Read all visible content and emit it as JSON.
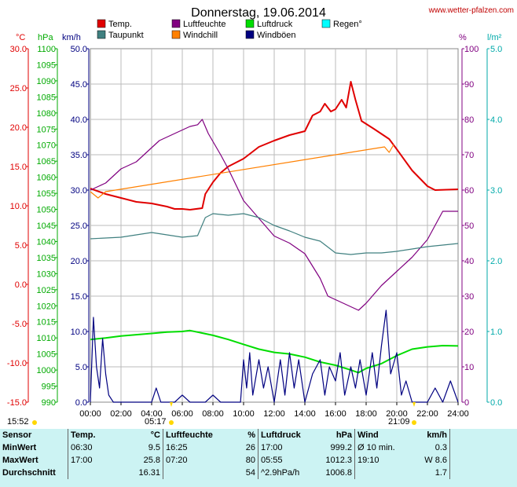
{
  "header": {
    "title": "Donnerstag, 19.06.2014",
    "url": "www.wetter-pfalzen.com"
  },
  "legend": [
    {
      "label": "Temp.",
      "color": "#e00000"
    },
    {
      "label": "Luftfeuchte",
      "color": "#800080"
    },
    {
      "label": "Luftdruck",
      "color": "#00dd00"
    },
    {
      "label": "Regen°",
      "color": "#00ffff"
    },
    {
      "label": "Taupunkt",
      "color": "#408080"
    },
    {
      "label": "Windchill",
      "color": "#ff8000"
    },
    {
      "label": "Windböen",
      "color": "#000080"
    }
  ],
  "units": {
    "temp": "°C",
    "pressure": "hPa",
    "wind": "km/h",
    "humidity": "%",
    "rain": "l/m²"
  },
  "axes": {
    "temp": [
      "30.0",
      "25.0",
      "20.0",
      "15.0",
      "10.0",
      "5.0",
      "0.0",
      "-5.0",
      "-10.0",
      "-15.0"
    ],
    "pressure": [
      "1100",
      "1095",
      "1090",
      "1085",
      "1080",
      "1075",
      "1070",
      "1065",
      "1060",
      "1055",
      "1050",
      "1045",
      "1040",
      "1035",
      "1030",
      "1025",
      "1020",
      "1015",
      "1010",
      "1005",
      "1000",
      "995",
      "990"
    ],
    "wind": [
      "50.0",
      "45.0",
      "40.0",
      "35.0",
      "30.0",
      "25.0",
      "20.0",
      "15.0",
      "10.0",
      "5.0",
      "0.0"
    ],
    "humidity": [
      "100",
      "90",
      "80",
      "70",
      "60",
      "50",
      "40",
      "30",
      "20",
      "10",
      "0"
    ],
    "rain": [
      "5.0",
      "4.0",
      "3.0",
      "2.0",
      "1.0",
      "0.0"
    ],
    "x": [
      "00:00",
      "02:00",
      "04:00",
      "06:00",
      "08:00",
      "10:00",
      "12:00",
      "14:00",
      "16:00",
      "18:00",
      "20:00",
      "22:00",
      "24:00"
    ]
  },
  "sun": {
    "sunrise": "05:17",
    "sunset": "21:09",
    "left_time": "15:52"
  },
  "chart_data": {
    "type": "line",
    "title": "Donnerstag, 19.06.2014",
    "x_unit": "hours",
    "xlim": [
      0,
      24
    ],
    "series": [
      {
        "name": "Temp.",
        "axis": "temp",
        "ylim": [
          -15,
          30
        ],
        "color": "#e00000",
        "points": [
          [
            0,
            12.2
          ],
          [
            1,
            11.5
          ],
          [
            2,
            11.0
          ],
          [
            3,
            10.5
          ],
          [
            4,
            10.3
          ],
          [
            5,
            9.9
          ],
          [
            5.5,
            9.6
          ],
          [
            6,
            9.6
          ],
          [
            6.5,
            9.5
          ],
          [
            7.3,
            9.7
          ],
          [
            7.5,
            11.5
          ],
          [
            8,
            13.0
          ],
          [
            8.5,
            14.2
          ],
          [
            9,
            15.0
          ],
          [
            10,
            16.0
          ],
          [
            11,
            17.5
          ],
          [
            12,
            18.3
          ],
          [
            13,
            19.0
          ],
          [
            14,
            19.5
          ],
          [
            14.5,
            21.5
          ],
          [
            15,
            22.0
          ],
          [
            15.3,
            23.0
          ],
          [
            15.7,
            22.0
          ],
          [
            16,
            22.3
          ],
          [
            16.4,
            23.5
          ],
          [
            16.7,
            22.5
          ],
          [
            17,
            25.8
          ],
          [
            17.3,
            23.5
          ],
          [
            17.7,
            20.8
          ],
          [
            18.5,
            19.8
          ],
          [
            19.5,
            18.5
          ],
          [
            20,
            17.2
          ],
          [
            21,
            14.5
          ],
          [
            22,
            12.5
          ],
          [
            22.5,
            12.0
          ],
          [
            24,
            12.1
          ]
        ]
      },
      {
        "name": "Windchill",
        "axis": "temp",
        "ylim": [
          -15,
          30
        ],
        "color": "#ff8000",
        "points": [
          [
            0,
            11.8
          ],
          [
            0.5,
            11.0
          ],
          [
            1,
            11.8
          ],
          [
            19.2,
            17.5
          ],
          [
            19.5,
            16.8
          ],
          [
            19.8,
            17.8
          ]
        ]
      },
      {
        "name": "Luftfeuchte",
        "axis": "humidity",
        "ylim": [
          0,
          100
        ],
        "color": "#800080",
        "points": [
          [
            0,
            60
          ],
          [
            1,
            62
          ],
          [
            2,
            66
          ],
          [
            3,
            68
          ],
          [
            4,
            72
          ],
          [
            4.5,
            74
          ],
          [
            5,
            75
          ],
          [
            6,
            77
          ],
          [
            6.5,
            78
          ],
          [
            7,
            78.5
          ],
          [
            7.3,
            80
          ],
          [
            7.7,
            76
          ],
          [
            8.5,
            70
          ],
          [
            9,
            66
          ],
          [
            10,
            57
          ],
          [
            11,
            52
          ],
          [
            12,
            47
          ],
          [
            13,
            45
          ],
          [
            14,
            42
          ],
          [
            15,
            35
          ],
          [
            15.5,
            30
          ],
          [
            16,
            29
          ],
          [
            16.5,
            28
          ],
          [
            17,
            27
          ],
          [
            17.5,
            26
          ],
          [
            18,
            28
          ],
          [
            19,
            33
          ],
          [
            20,
            37
          ],
          [
            21,
            41
          ],
          [
            22,
            46
          ],
          [
            23,
            54
          ],
          [
            24,
            54
          ]
        ]
      },
      {
        "name": "Luftdruck",
        "axis": "pressure",
        "ylim": [
          990,
          1100
        ],
        "color": "#00dd00",
        "points": [
          [
            0,
            1009.5
          ],
          [
            1,
            1010.0
          ],
          [
            2,
            1010.6
          ],
          [
            3,
            1011.0
          ],
          [
            4,
            1011.4
          ],
          [
            5,
            1011.8
          ],
          [
            6,
            1012.0
          ],
          [
            6.5,
            1012.3
          ],
          [
            7,
            1011.8
          ],
          [
            8,
            1010.8
          ],
          [
            9,
            1009.5
          ],
          [
            10,
            1008.0
          ],
          [
            11,
            1006.5
          ],
          [
            12,
            1005.5
          ],
          [
            13,
            1005.0
          ],
          [
            14,
            1004.0
          ],
          [
            15,
            1002.5
          ],
          [
            16,
            1001.5
          ],
          [
            17,
            1000.0
          ],
          [
            17.5,
            999.2
          ],
          [
            18,
            1000.5
          ],
          [
            19,
            1002.0
          ],
          [
            20,
            1004.5
          ],
          [
            21,
            1006.5
          ],
          [
            22,
            1007.2
          ],
          [
            23,
            1007.6
          ],
          [
            24,
            1007.5
          ]
        ]
      },
      {
        "name": "Taupunkt",
        "axis": "temp",
        "ylim": [
          -15,
          30
        ],
        "color": "#408080",
        "points": [
          [
            0,
            5.8
          ],
          [
            1,
            5.9
          ],
          [
            2,
            6.0
          ],
          [
            3,
            6.3
          ],
          [
            4,
            6.6
          ],
          [
            5,
            6.3
          ],
          [
            6,
            6.0
          ],
          [
            7,
            6.2
          ],
          [
            7.5,
            8.5
          ],
          [
            8,
            9.0
          ],
          [
            9,
            8.8
          ],
          [
            10,
            9.0
          ],
          [
            11,
            8.5
          ],
          [
            12,
            7.5
          ],
          [
            13,
            6.8
          ],
          [
            14,
            6.0
          ],
          [
            15,
            5.5
          ],
          [
            16,
            4.0
          ],
          [
            17,
            3.8
          ],
          [
            18,
            4.0
          ],
          [
            19,
            4.0
          ],
          [
            20,
            4.2
          ],
          [
            21,
            4.5
          ],
          [
            22,
            4.8
          ],
          [
            23,
            5.0
          ],
          [
            24,
            5.2
          ]
        ]
      },
      {
        "name": "Windböen",
        "axis": "wind",
        "ylim": [
          0,
          50
        ],
        "color": "#000080",
        "points": [
          [
            0,
            0
          ],
          [
            0.2,
            12
          ],
          [
            0.4,
            5
          ],
          [
            0.6,
            2
          ],
          [
            0.8,
            9
          ],
          [
            1,
            4
          ],
          [
            1.2,
            1
          ],
          [
            1.5,
            0
          ],
          [
            4,
            0
          ],
          [
            4.3,
            2
          ],
          [
            4.6,
            0
          ],
          [
            5.5,
            0
          ],
          [
            6,
            1
          ],
          [
            6.5,
            0
          ],
          [
            7.5,
            0
          ],
          [
            8,
            1
          ],
          [
            8.5,
            0
          ],
          [
            9.8,
            0
          ],
          [
            10,
            6
          ],
          [
            10.2,
            2
          ],
          [
            10.4,
            7
          ],
          [
            10.6,
            1
          ],
          [
            11,
            6
          ],
          [
            11.3,
            2
          ],
          [
            11.6,
            5
          ],
          [
            12,
            0
          ],
          [
            12.4,
            6
          ],
          [
            12.7,
            1
          ],
          [
            13,
            7
          ],
          [
            13.3,
            2
          ],
          [
            13.6,
            6
          ],
          [
            14,
            0
          ],
          [
            14.5,
            4
          ],
          [
            15,
            6
          ],
          [
            15.3,
            1
          ],
          [
            15.6,
            5
          ],
          [
            16,
            3
          ],
          [
            16.3,
            7
          ],
          [
            16.6,
            1
          ],
          [
            17,
            5
          ],
          [
            17.3,
            2
          ],
          [
            17.6,
            6
          ],
          [
            18,
            1
          ],
          [
            18.4,
            7
          ],
          [
            18.7,
            2
          ],
          [
            19,
            8
          ],
          [
            19.3,
            13
          ],
          [
            19.6,
            4
          ],
          [
            20,
            7
          ],
          [
            20.3,
            1
          ],
          [
            20.6,
            3
          ],
          [
            21,
            0
          ],
          [
            22,
            0
          ],
          [
            22.5,
            2
          ],
          [
            23,
            0
          ],
          [
            23.5,
            3
          ],
          [
            24,
            0
          ]
        ]
      }
    ]
  },
  "stats": {
    "header": [
      "Sensor",
      "Temp.",
      "°C",
      "Luftfeuchte",
      "%",
      "Luftdruck",
      "hPa",
      "Wind",
      "km/h"
    ],
    "rows": [
      [
        "MinWert",
        "06:30",
        "9.5",
        "16:25",
        "26",
        "17:00",
        "999.2",
        "Ø 10 min.",
        "0.3"
      ],
      [
        "MaxWert",
        "17:00",
        "25.8",
        "07:20",
        "80",
        "05:55",
        "1012.3",
        "19:10",
        "W 8.6"
      ],
      [
        "Durchschnitt",
        "",
        "16.31",
        "",
        "54",
        "^2.9hPa/h",
        "1006.8",
        "",
        "1.7"
      ]
    ]
  }
}
